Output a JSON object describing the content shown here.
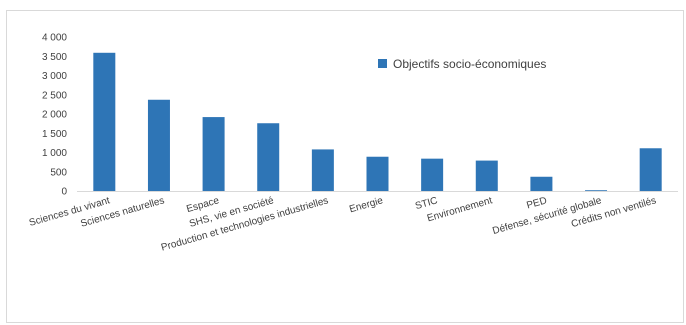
{
  "chart_data": {
    "type": "bar",
    "categories": [
      "Sciences du vivant",
      "Sciences naturelles",
      "Espace",
      "SHS, vie en société",
      "Production et technologies industrielles",
      "Energie",
      "STIC",
      "Environnement",
      "PED",
      "Défense, sécurité globale",
      "Crédits non ventilés"
    ],
    "series": [
      {
        "name": "Objectifs socio-économiques",
        "color": "#2e75b6",
        "values": [
          3590,
          2370,
          1920,
          1760,
          1080,
          890,
          840,
          790,
          370,
          20,
          1110
        ]
      }
    ],
    "y_tick_labels": [
      "0",
      "500",
      "1 000",
      "1 500",
      "2 000",
      "2 500",
      "3 000",
      "3 500",
      "4 000"
    ],
    "ylim": [
      0,
      4000
    ],
    "grid": false,
    "legend_position": "top-right"
  }
}
